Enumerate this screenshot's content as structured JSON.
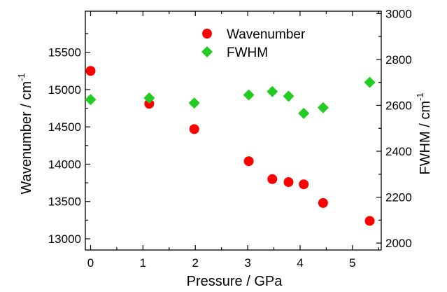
{
  "chart_data": {
    "type": "scatter",
    "xlabel": "Pressure / GPa",
    "ylabel_left": "Wavenumber / cm",
    "ylabel_left_sup": "-1",
    "ylabel_right": "FWHM / cm",
    "ylabel_right_sup": "-1",
    "xlim": [
      -0.1,
      5.55
    ],
    "ylim_left": [
      12850,
      16050
    ],
    "ylim_right": [
      1970,
      3010
    ],
    "x_ticks": [
      0,
      1,
      2,
      3,
      4,
      5
    ],
    "y_left_ticks": [
      13000,
      13500,
      14000,
      14500,
      15000,
      15500
    ],
    "y_right_ticks": [
      2000,
      2200,
      2400,
      2600,
      2800,
      3000
    ],
    "legend_position": "top-center",
    "grid": false,
    "series": [
      {
        "name": "Wavenumber",
        "axis": "left",
        "marker": "circle",
        "color": "#ff0000",
        "x": [
          0,
          1.12,
          1.98,
          3.02,
          3.47,
          3.78,
          4.07,
          4.44,
          5.33
        ],
        "y": [
          15250,
          14810,
          14470,
          14040,
          13800,
          13760,
          13730,
          13480,
          13240
        ]
      },
      {
        "name": "FWHM",
        "axis": "right",
        "marker": "diamond",
        "color": "#22cc22",
        "x": [
          0,
          1.12,
          1.98,
          3.02,
          3.47,
          3.78,
          4.07,
          4.44,
          5.33
        ],
        "y": [
          2625,
          2632,
          2610,
          2645,
          2660,
          2640,
          2565,
          2590,
          2700
        ]
      }
    ]
  }
}
